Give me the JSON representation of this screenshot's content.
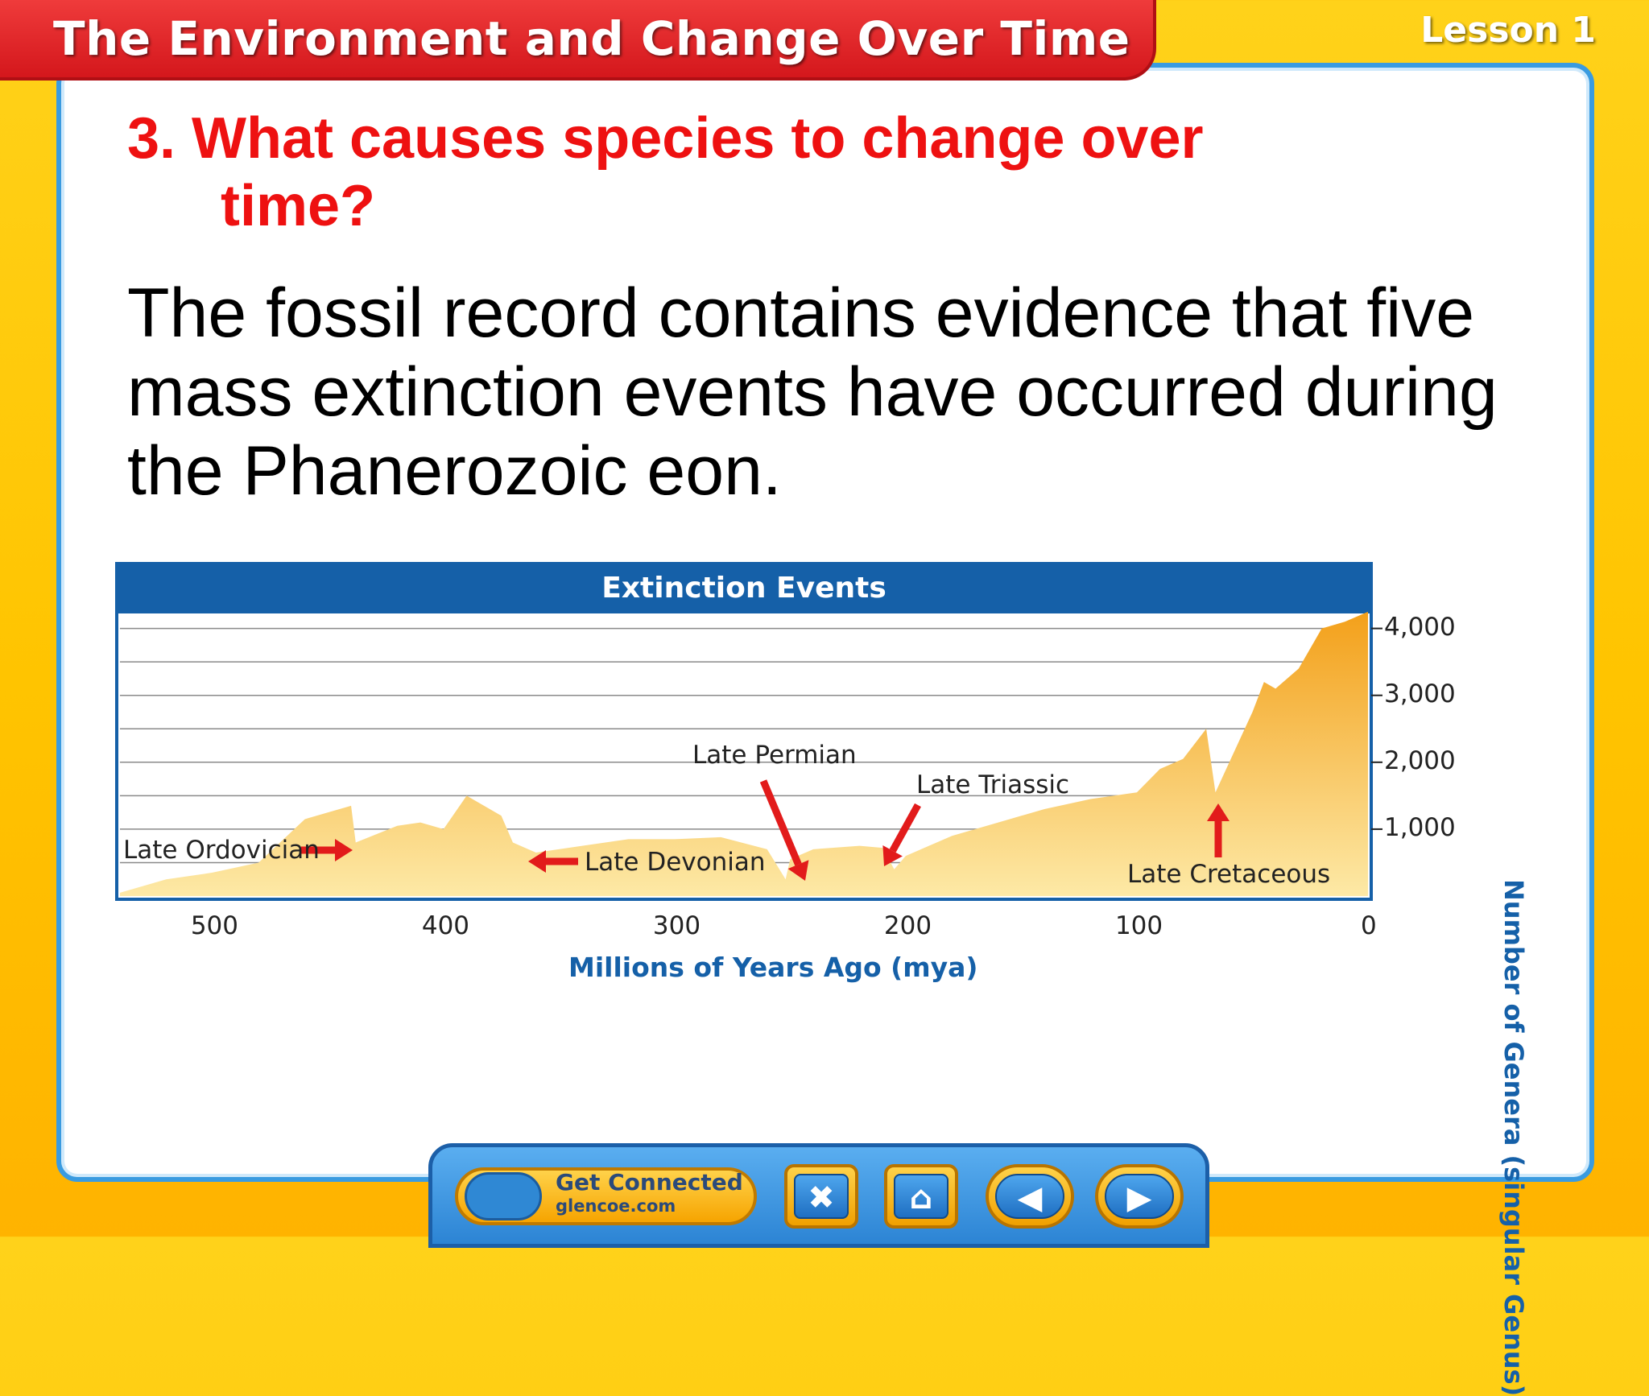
{
  "header": {
    "title": "The Environment and Change Over Time",
    "lesson": "Lesson 1"
  },
  "slide": {
    "question_line1": "3. What causes species to change over",
    "question_line2": "time?",
    "body": "The fossil record contains evidence that five mass extinction events have occurred during the Phanerozoic eon."
  },
  "chart_data": {
    "type": "area",
    "title": "Extinction Events",
    "xlabel": "Millions of Years Ago (mya)",
    "ylabel": "Number of Genera (singular Genus)",
    "xlim": [
      540,
      0
    ],
    "ylim": [
      0,
      4200
    ],
    "x_ticks": [
      "500",
      "400",
      "300",
      "200",
      "100",
      "0"
    ],
    "y_ticks": [
      "1,000",
      "2,000",
      "3,000",
      "4,000"
    ],
    "x": [
      540,
      520,
      500,
      480,
      460,
      450,
      440,
      438,
      420,
      410,
      400,
      390,
      375,
      370,
      360,
      340,
      320,
      300,
      280,
      260,
      252,
      250,
      240,
      220,
      210,
      205,
      200,
      180,
      160,
      140,
      120,
      100,
      90,
      80,
      70,
      66,
      60,
      50,
      45,
      40,
      30,
      20,
      10,
      0
    ],
    "values": [
      50,
      250,
      350,
      500,
      1150,
      1250,
      1350,
      800,
      1050,
      1100,
      1000,
      1500,
      1200,
      800,
      650,
      750,
      850,
      850,
      880,
      700,
      250,
      550,
      700,
      750,
      720,
      400,
      600,
      900,
      1100,
      1300,
      1450,
      1550,
      1900,
      2050,
      2500,
      1550,
      2000,
      2750,
      3200,
      3100,
      3400,
      4000,
      4100,
      4250
    ],
    "annotations": [
      {
        "label": "Late Ordovician",
        "x": 445
      },
      {
        "label": "Late Devonian",
        "x": 372
      },
      {
        "label": "Late Permian",
        "x": 252
      },
      {
        "label": "Late Triassic",
        "x": 205
      },
      {
        "label": "Late Cretaceous",
        "x": 66
      }
    ],
    "grid": true,
    "colors": {
      "fill_top": "#f3a01a",
      "fill_bottom": "#fde9a6",
      "header": "#1560a8",
      "arrow": "#e21b1b"
    }
  },
  "nav": {
    "get_connected": "Get Connected",
    "site": "glencoe.com",
    "close_glyph": "✖",
    "home_glyph": "⌂",
    "prev_glyph": "◀",
    "next_glyph": "▶"
  }
}
